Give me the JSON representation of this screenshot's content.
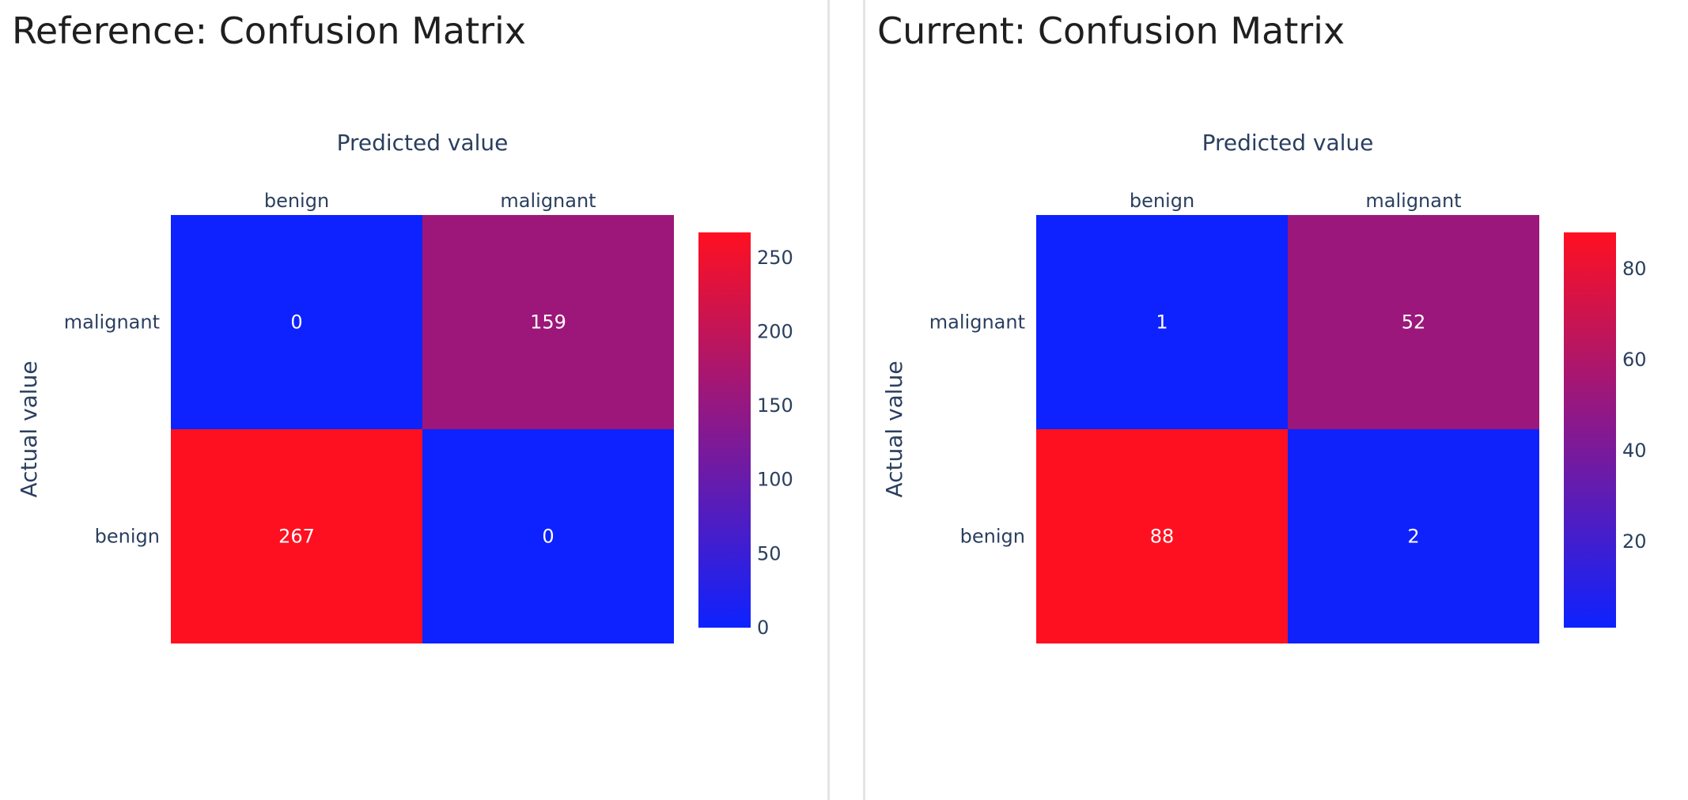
{
  "panels": [
    {
      "title": "Reference: Confusion Matrix",
      "chart_data": {
        "type": "heatmap",
        "title": "Reference: Confusion Matrix",
        "xlabel": "Predicted value",
        "ylabel": "Actual value",
        "x_categories": [
          "benign",
          "malignant"
        ],
        "y_categories_top_to_bottom": [
          "malignant",
          "benign"
        ],
        "z": [
          [
            0,
            159
          ],
          [
            267,
            0
          ]
        ],
        "colorscale": [
          "#0d22ff",
          "#ff1020"
        ],
        "colorbar_range": [
          0,
          267
        ],
        "colorbar_ticks": [
          0,
          50,
          100,
          150,
          200,
          250
        ]
      }
    },
    {
      "title": "Current: Confusion Matrix",
      "chart_data": {
        "type": "heatmap",
        "title": "Current: Confusion Matrix",
        "xlabel": "Predicted value",
        "ylabel": "Actual value",
        "x_categories": [
          "benign",
          "malignant"
        ],
        "y_categories_top_to_bottom": [
          "malignant",
          "benign"
        ],
        "z": [
          [
            1,
            52
          ],
          [
            88,
            2
          ]
        ],
        "colorscale": [
          "#0d22ff",
          "#ff1020"
        ],
        "colorbar_range": [
          1,
          88
        ],
        "colorbar_ticks": [
          20,
          40,
          60,
          80
        ]
      }
    }
  ]
}
